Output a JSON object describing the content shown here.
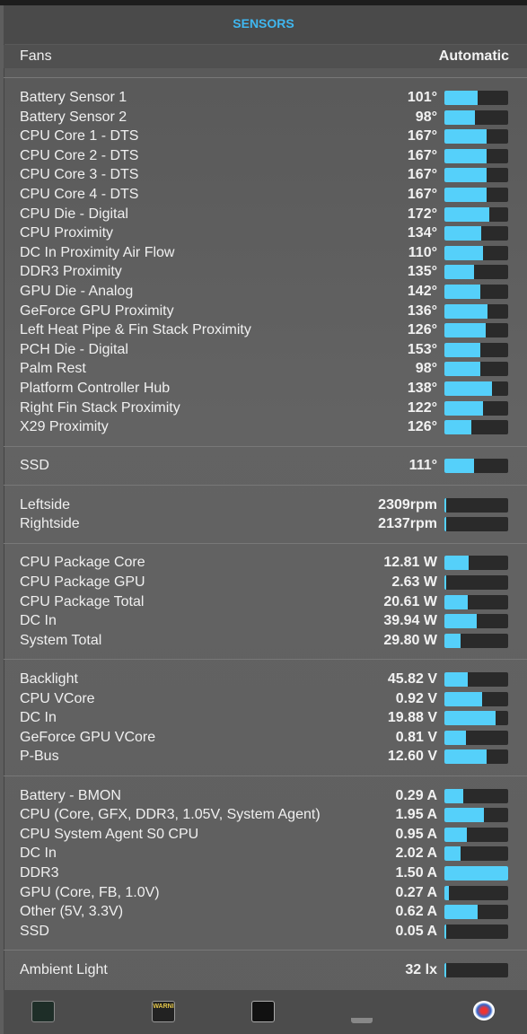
{
  "header": {
    "title": "SENSORS"
  },
  "fans": {
    "label": "Fans",
    "mode": "Automatic"
  },
  "sections": [
    {
      "rows": [
        {
          "name": "Battery Sensor 1",
          "value": "101°",
          "level": 52
        },
        {
          "name": "Battery Sensor 2",
          "value": "98°",
          "level": 48
        },
        {
          "name": "CPU Core 1 - DTS",
          "value": "167°",
          "level": 66
        },
        {
          "name": "CPU Core 2 - DTS",
          "value": "167°",
          "level": 66
        },
        {
          "name": "CPU Core 3 - DTS",
          "value": "167°",
          "level": 66
        },
        {
          "name": "CPU Core 4 - DTS",
          "value": "167°",
          "level": 66
        },
        {
          "name": "CPU Die - Digital",
          "value": "172°",
          "level": 70
        },
        {
          "name": "CPU Proximity",
          "value": "134°",
          "level": 58
        },
        {
          "name": "DC In Proximity Air Flow",
          "value": "110°",
          "level": 60
        },
        {
          "name": "DDR3 Proximity",
          "value": "135°",
          "level": 46
        },
        {
          "name": "GPU Die - Analog",
          "value": "142°",
          "level": 56
        },
        {
          "name": "GeForce GPU Proximity",
          "value": "136°",
          "level": 68
        },
        {
          "name": "Left Heat Pipe & Fin Stack Proximity",
          "value": "126°",
          "level": 65
        },
        {
          "name": "PCH Die - Digital",
          "value": "153°",
          "level": 56
        },
        {
          "name": "Palm Rest",
          "value": "98°",
          "level": 56
        },
        {
          "name": "Platform Controller Hub",
          "value": "138°",
          "level": 75
        },
        {
          "name": "Right Fin Stack Proximity",
          "value": "122°",
          "level": 60
        },
        {
          "name": "X29 Proximity",
          "value": "126°",
          "level": 42
        }
      ]
    },
    {
      "rows": [
        {
          "name": "SSD",
          "value": "111°",
          "level": 46
        }
      ]
    },
    {
      "rows": [
        {
          "name": "Leftside",
          "value": "2309rpm",
          "level": 3
        },
        {
          "name": "Rightside",
          "value": "2137rpm",
          "level": 3
        }
      ]
    },
    {
      "rows": [
        {
          "name": "CPU Package Core",
          "value": "12.81 W",
          "level": 38
        },
        {
          "name": "CPU Package GPU",
          "value": "2.63 W",
          "level": 3
        },
        {
          "name": "CPU Package Total",
          "value": "20.61 W",
          "level": 37
        },
        {
          "name": "DC In",
          "value": "39.94 W",
          "level": 51
        },
        {
          "name": "System Total",
          "value": "29.80 W",
          "level": 25
        }
      ]
    },
    {
      "rows": [
        {
          "name": "Backlight",
          "value": "45.82 V",
          "level": 37
        },
        {
          "name": "CPU VCore",
          "value": "0.92 V",
          "level": 59
        },
        {
          "name": "DC In",
          "value": "19.88 V",
          "level": 80
        },
        {
          "name": "GeForce GPU VCore",
          "value": "0.81 V",
          "level": 34
        },
        {
          "name": "P-Bus",
          "value": "12.60 V",
          "level": 66
        }
      ]
    },
    {
      "rows": [
        {
          "name": "Battery - BMON",
          "value": "0.29 A",
          "level": 30
        },
        {
          "name": "CPU (Core, GFX, DDR3, 1.05V, System Agent)",
          "value": "1.95 A",
          "level": 62
        },
        {
          "name": "CPU System Agent S0 CPU",
          "value": "0.95 A",
          "level": 35
        },
        {
          "name": "DC In",
          "value": "2.02 A",
          "level": 25
        },
        {
          "name": "DDR3",
          "value": "1.50 A",
          "level": 100
        },
        {
          "name": "GPU (Core, FB, 1.0V)",
          "value": "0.27 A",
          "level": 7
        },
        {
          "name": "Other (5V, 3.3V)",
          "value": "0.62 A",
          "level": 52
        },
        {
          "name": "SSD",
          "value": "0.05 A",
          "level": 3
        }
      ]
    },
    {
      "rows": [
        {
          "name": "Ambient Light",
          "value": "32 lx",
          "level": 3
        }
      ]
    }
  ],
  "toolbar": {
    "console_label": "WARNI"
  }
}
